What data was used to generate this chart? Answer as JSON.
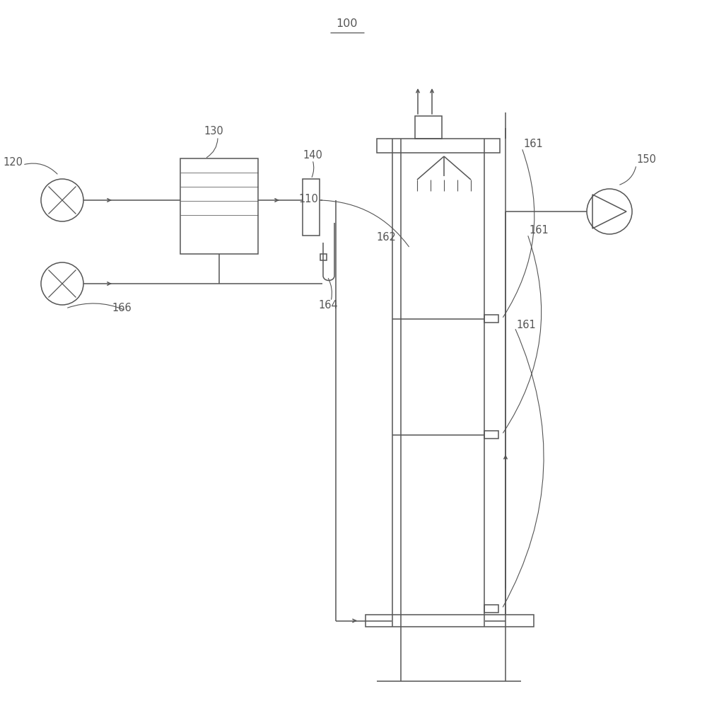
{
  "bg_color": "#ffffff",
  "line_color": "#555555",
  "label_color": "#555555",
  "title_label": "100",
  "label_120": "120",
  "label_130": "130",
  "label_140": "140",
  "label_150": "150",
  "label_161a": "161",
  "label_161b": "161",
  "label_161c": "161",
  "label_162": "162",
  "label_164": "164",
  "label_166": "166",
  "label_110": "110"
}
